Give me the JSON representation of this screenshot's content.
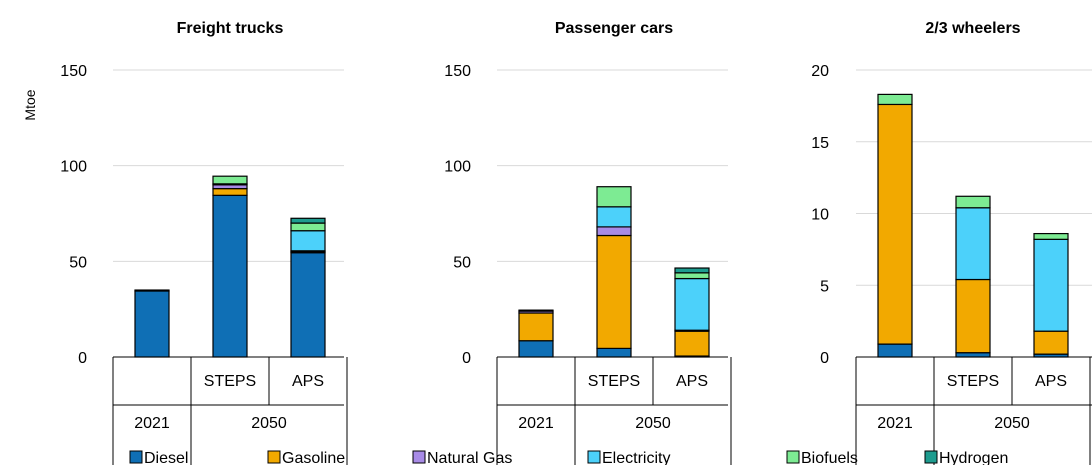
{
  "ylabel": "Mtoe",
  "legend": [
    {
      "name": "Diesel",
      "color": "#0F6FB5"
    },
    {
      "name": "Gasoline",
      "color": "#F2A900"
    },
    {
      "name": "Natural Gas",
      "color": "#A88BE6"
    },
    {
      "name": "Electricity",
      "color": "#4CD1FA"
    },
    {
      "name": "Biofuels",
      "color": "#7DEB93"
    },
    {
      "name": "Hydrogen",
      "color": "#1E9C8F"
    }
  ],
  "chart_data": [
    {
      "type": "bar",
      "stacked": true,
      "title": "Freight trucks",
      "ylim": [
        0,
        150
      ],
      "yticks": [
        0,
        50,
        100,
        150
      ],
      "categories": [
        "2021",
        "STEPS",
        "APS"
      ],
      "groups": [
        {
          "label": "2021",
          "span": 1
        },
        {
          "label": "2050",
          "span": 2
        }
      ],
      "series": [
        {
          "name": "Diesel",
          "values": [
            34.5,
            84.5,
            54.5
          ]
        },
        {
          "name": "Gasoline",
          "values": [
            0.5,
            3.5,
            0.5
          ]
        },
        {
          "name": "Natural Gas",
          "values": [
            0.0,
            2.0,
            0.5
          ]
        },
        {
          "name": "Electricity",
          "values": [
            0.0,
            0.5,
            10.5
          ]
        },
        {
          "name": "Biofuels",
          "values": [
            0.0,
            4.0,
            4.0
          ]
        },
        {
          "name": "Hydrogen",
          "values": [
            0.0,
            0.0,
            2.5
          ]
        }
      ]
    },
    {
      "type": "bar",
      "stacked": true,
      "title": "Passenger cars",
      "ylim": [
        0,
        150
      ],
      "yticks": [
        0,
        50,
        100,
        150
      ],
      "categories": [
        "2021",
        "STEPS",
        "APS"
      ],
      "groups": [
        {
          "label": "2021",
          "span": 1
        },
        {
          "label": "2050",
          "span": 2
        }
      ],
      "series": [
        {
          "name": "Diesel",
          "values": [
            8.5,
            4.5,
            0.5
          ]
        },
        {
          "name": "Gasoline",
          "values": [
            14.5,
            59.0,
            13.0
          ]
        },
        {
          "name": "Natural Gas",
          "values": [
            1.0,
            4.5,
            0.5
          ]
        },
        {
          "name": "Electricity",
          "values": [
            0.0,
            10.5,
            27.0
          ]
        },
        {
          "name": "Biofuels",
          "values": [
            0.5,
            10.5,
            3.0
          ]
        },
        {
          "name": "Hydrogen",
          "values": [
            0.0,
            0.0,
            2.5
          ]
        }
      ]
    },
    {
      "type": "bar",
      "stacked": true,
      "title": "2/3 wheelers",
      "ylim": [
        0,
        20
      ],
      "yticks": [
        0,
        5,
        10,
        15,
        20
      ],
      "categories": [
        "2021",
        "STEPS",
        "APS"
      ],
      "groups": [
        {
          "label": "2021",
          "span": 1
        },
        {
          "label": "2050",
          "span": 2
        }
      ],
      "series": [
        {
          "name": "Diesel",
          "values": [
            0.9,
            0.3,
            0.2
          ]
        },
        {
          "name": "Gasoline",
          "values": [
            16.7,
            5.1,
            1.6
          ]
        },
        {
          "name": "Natural Gas",
          "values": [
            0.0,
            0.0,
            0.0
          ]
        },
        {
          "name": "Electricity",
          "values": [
            0.0,
            5.0,
            6.4
          ]
        },
        {
          "name": "Biofuels",
          "values": [
            0.7,
            0.8,
            0.4
          ]
        },
        {
          "name": "Hydrogen",
          "values": [
            0.0,
            0.0,
            0.0
          ]
        }
      ]
    }
  ]
}
